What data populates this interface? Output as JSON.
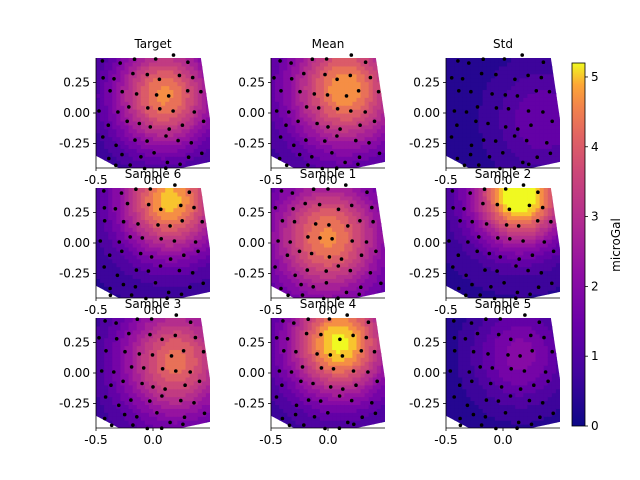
{
  "chart_data": {
    "type": "contour",
    "colorbar": {
      "label": "microGal",
      "range": [
        0,
        5.2
      ],
      "ticks": [
        "0",
        "1",
        "2",
        "3",
        "4",
        "5"
      ],
      "tick_values": [
        0,
        1,
        2,
        3,
        4,
        5
      ],
      "colormap": "plasma"
    },
    "subplots": [
      {
        "title": "Target",
        "peak": [
          0.1,
          0.15
        ],
        "amp": 4.3,
        "floor": 0.3,
        "spread": 0.55,
        "xticks": [
          "-0.5",
          "0.0"
        ],
        "yticks": [
          "0.25",
          "0.00",
          "-0.25"
        ]
      },
      {
        "title": "Mean",
        "peak": [
          0.15,
          0.2
        ],
        "amp": 4.3,
        "floor": 0.5,
        "spread": 0.6,
        "xticks": [
          "-0.5",
          "0.0"
        ],
        "yticks": [
          "0.25",
          "0.00",
          "-0.25"
        ]
      },
      {
        "title": "Std",
        "peak": [
          0.35,
          -0.05
        ],
        "amp": 1.2,
        "floor": 0.3,
        "spread": 0.5,
        "xticks": [
          "-0.5",
          "0.0"
        ],
        "yticks": [
          "0.25",
          "0.00",
          "-0.25"
        ]
      },
      {
        "title": "Sample 6",
        "peak": [
          0.15,
          0.35
        ],
        "amp": 4.6,
        "floor": 0.4,
        "spread": 0.55,
        "xticks": [
          "-0.5",
          "0.0"
        ],
        "yticks": [
          "0.25",
          "0.00",
          "-0.25"
        ]
      },
      {
        "title": "Sample 1",
        "peak": [
          0.0,
          0.05
        ],
        "amp": 4.0,
        "floor": 0.6,
        "spread": 0.6,
        "xticks": [
          "-0.5",
          "0.0"
        ],
        "yticks": [
          "0.25",
          "0.00",
          "-0.25"
        ]
      },
      {
        "title": "Sample 2",
        "peak": [
          0.15,
          0.4
        ],
        "amp": 5.4,
        "floor": 0.4,
        "spread": 0.5,
        "xticks": [
          "-0.5",
          "0.0"
        ],
        "yticks": [
          "0.25",
          "0.00",
          "-0.25"
        ]
      },
      {
        "title": "Sample 3",
        "peak": [
          0.2,
          0.1
        ],
        "amp": 3.9,
        "floor": 0.4,
        "spread": 0.6,
        "xticks": [
          "-0.5",
          "0.0"
        ],
        "yticks": [
          "0.25",
          "0.00",
          "-0.25"
        ]
      },
      {
        "title": "Sample 4",
        "peak": [
          0.1,
          0.25
        ],
        "amp": 4.8,
        "floor": 0.5,
        "spread": 0.55,
        "xticks": [
          "-0.5",
          "0.0"
        ],
        "yticks": [
          "0.25",
          "0.00",
          "-0.25"
        ]
      },
      {
        "title": "Sample 5",
        "peak": [
          0.15,
          0.15
        ],
        "amp": 1.8,
        "floor": 0.2,
        "spread": 0.5,
        "xticks": [
          "-0.5",
          "0.0"
        ],
        "yticks": [
          "0.25",
          "0.00",
          "-0.25"
        ]
      }
    ],
    "sample_points": [
      [
        -0.42,
        0.45
      ],
      [
        -0.3,
        0.42
      ],
      [
        -0.15,
        0.44
      ],
      [
        0.0,
        0.43
      ],
      [
        0.18,
        0.45
      ],
      [
        0.33,
        0.44
      ],
      [
        -0.45,
        0.3
      ],
      [
        -0.33,
        0.28
      ],
      [
        -0.2,
        0.31
      ],
      [
        -0.05,
        0.29
      ],
      [
        0.08,
        0.3
      ],
      [
        0.22,
        0.32
      ],
      [
        0.36,
        0.29
      ],
      [
        -0.4,
        0.17
      ],
      [
        -0.27,
        0.15
      ],
      [
        -0.12,
        0.18
      ],
      [
        0.02,
        0.16
      ],
      [
        0.15,
        0.14
      ],
      [
        0.28,
        0.17
      ],
      [
        0.42,
        0.15
      ],
      [
        -0.45,
        0.04
      ],
      [
        -0.32,
        0.02
      ],
      [
        -0.2,
        0.05
      ],
      [
        -0.07,
        0.03
      ],
      [
        0.06,
        0.01
      ],
      [
        0.2,
        0.04
      ],
      [
        0.35,
        0.02
      ],
      [
        -0.38,
        -0.1
      ],
      [
        -0.25,
        -0.08
      ],
      [
        -0.12,
        -0.11
      ],
      [
        0.0,
        -0.09
      ],
      [
        0.13,
        -0.12
      ],
      [
        0.27,
        -0.1
      ],
      [
        0.42,
        -0.08
      ],
      [
        -0.44,
        -0.22
      ],
      [
        -0.3,
        -0.24
      ],
      [
        -0.17,
        -0.21
      ],
      [
        -0.04,
        -0.23
      ],
      [
        0.09,
        -0.2
      ],
      [
        0.22,
        -0.25
      ],
      [
        0.36,
        -0.22
      ],
      [
        -0.4,
        -0.36
      ],
      [
        -0.26,
        -0.34
      ],
      [
        -0.13,
        -0.37
      ],
      [
        0.01,
        -0.35
      ],
      [
        0.15,
        -0.38
      ],
      [
        0.3,
        -0.35
      ],
      [
        0.44,
        -0.33
      ],
      [
        -0.35,
        -0.44
      ],
      [
        -0.2,
        -0.45
      ],
      [
        -0.05,
        -0.43
      ],
      [
        0.1,
        -0.44
      ],
      [
        0.25,
        -0.42
      ]
    ]
  }
}
